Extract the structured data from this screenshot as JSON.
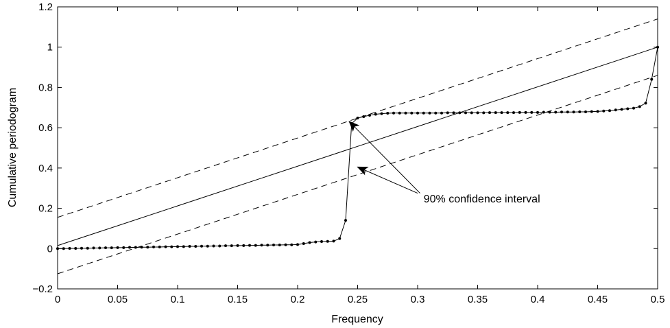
{
  "chart_data": {
    "type": "line",
    "title": "",
    "xlabel": "Frequency",
    "ylabel": "Cumulative periodogram",
    "xlim": [
      0,
      0.5
    ],
    "ylim": [
      -0.2,
      1.2
    ],
    "xticks": [
      "0",
      "0.05",
      "0.1",
      "0.15",
      "0.2",
      "0.25",
      "0.3",
      "0.35",
      "0.4",
      "0.45",
      "0.5"
    ],
    "yticks": [
      "−0.2",
      "0",
      "0.2",
      "0.4",
      "0.6",
      "0.8",
      "1",
      "1.2"
    ],
    "xtick_values": [
      0,
      0.05,
      0.1,
      0.15,
      0.2,
      0.25,
      0.3,
      0.35,
      0.4,
      0.45,
      0.5
    ],
    "ytick_values": [
      -0.2,
      0,
      0.2,
      0.4,
      0.6,
      0.8,
      1,
      1.2
    ],
    "grid": false,
    "series": [
      {
        "style": "solid-dots",
        "x": [
          0,
          0.005,
          0.01,
          0.015,
          0.02,
          0.025,
          0.03,
          0.035,
          0.04,
          0.045,
          0.05,
          0.055,
          0.06,
          0.065,
          0.07,
          0.075,
          0.08,
          0.085,
          0.09,
          0.095,
          0.1,
          0.105,
          0.11,
          0.115,
          0.12,
          0.125,
          0.13,
          0.135,
          0.14,
          0.145,
          0.15,
          0.155,
          0.16,
          0.165,
          0.17,
          0.175,
          0.18,
          0.185,
          0.19,
          0.195,
          0.2,
          0.205,
          0.21,
          0.215,
          0.22,
          0.225,
          0.23,
          0.235,
          0.24,
          0.245,
          0.25,
          0.255,
          0.26,
          0.265,
          0.27,
          0.275,
          0.28,
          0.285,
          0.29,
          0.295,
          0.3,
          0.305,
          0.31,
          0.315,
          0.32,
          0.325,
          0.33,
          0.335,
          0.34,
          0.345,
          0.35,
          0.355,
          0.36,
          0.365,
          0.37,
          0.375,
          0.38,
          0.385,
          0.39,
          0.395,
          0.4,
          0.405,
          0.41,
          0.415,
          0.42,
          0.425,
          0.43,
          0.435,
          0.44,
          0.445,
          0.45,
          0.455,
          0.46,
          0.465,
          0.47,
          0.475,
          0.48,
          0.485,
          0.49,
          0.495,
          0.5
        ],
        "y": [
          0,
          0,
          0.001,
          0.001,
          0.002,
          0.002,
          0.003,
          0.003,
          0.004,
          0.004,
          0.005,
          0.005,
          0.006,
          0.006,
          0.007,
          0.007,
          0.008,
          0.008,
          0.009,
          0.009,
          0.01,
          0.01,
          0.011,
          0.011,
          0.012,
          0.012,
          0.013,
          0.013,
          0.014,
          0.014,
          0.015,
          0.015,
          0.016,
          0.016,
          0.017,
          0.017,
          0.018,
          0.018,
          0.019,
          0.019,
          0.02,
          0.025,
          0.03,
          0.033,
          0.035,
          0.036,
          0.037,
          0.05,
          0.14,
          0.62,
          0.648,
          0.655,
          0.662,
          0.667,
          0.67,
          0.672,
          0.673,
          0.673,
          0.673,
          0.673,
          0.673,
          0.673,
          0.673,
          0.673,
          0.673,
          0.674,
          0.674,
          0.674,
          0.674,
          0.674,
          0.674,
          0.674,
          0.675,
          0.675,
          0.675,
          0.675,
          0.675,
          0.676,
          0.676,
          0.676,
          0.676,
          0.677,
          0.677,
          0.677,
          0.678,
          0.678,
          0.678,
          0.679,
          0.679,
          0.68,
          0.681,
          0.683,
          0.685,
          0.688,
          0.691,
          0.694,
          0.697,
          0.705,
          0.722,
          0.84,
          1.0
        ]
      },
      {
        "style": "solid",
        "x": [
          0,
          0.5
        ],
        "y": [
          0.015,
          1.0
        ]
      },
      {
        "style": "dashed",
        "x": [
          0,
          0.5
        ],
        "y": [
          0.155,
          1.14
        ]
      },
      {
        "style": "dashed",
        "x": [
          0,
          0.5
        ],
        "y": [
          -0.125,
          0.86
        ]
      }
    ],
    "annotations": [
      {
        "text": "90% confidence interval",
        "text_x": 0.305,
        "text_y": 0.23,
        "arrows": [
          {
            "from": [
              0.302,
              0.275
            ],
            "to": [
              0.243,
              0.631
            ]
          },
          {
            "from": [
              0.3,
              0.275
            ],
            "to": [
              0.25,
              0.405
            ]
          }
        ]
      }
    ]
  }
}
